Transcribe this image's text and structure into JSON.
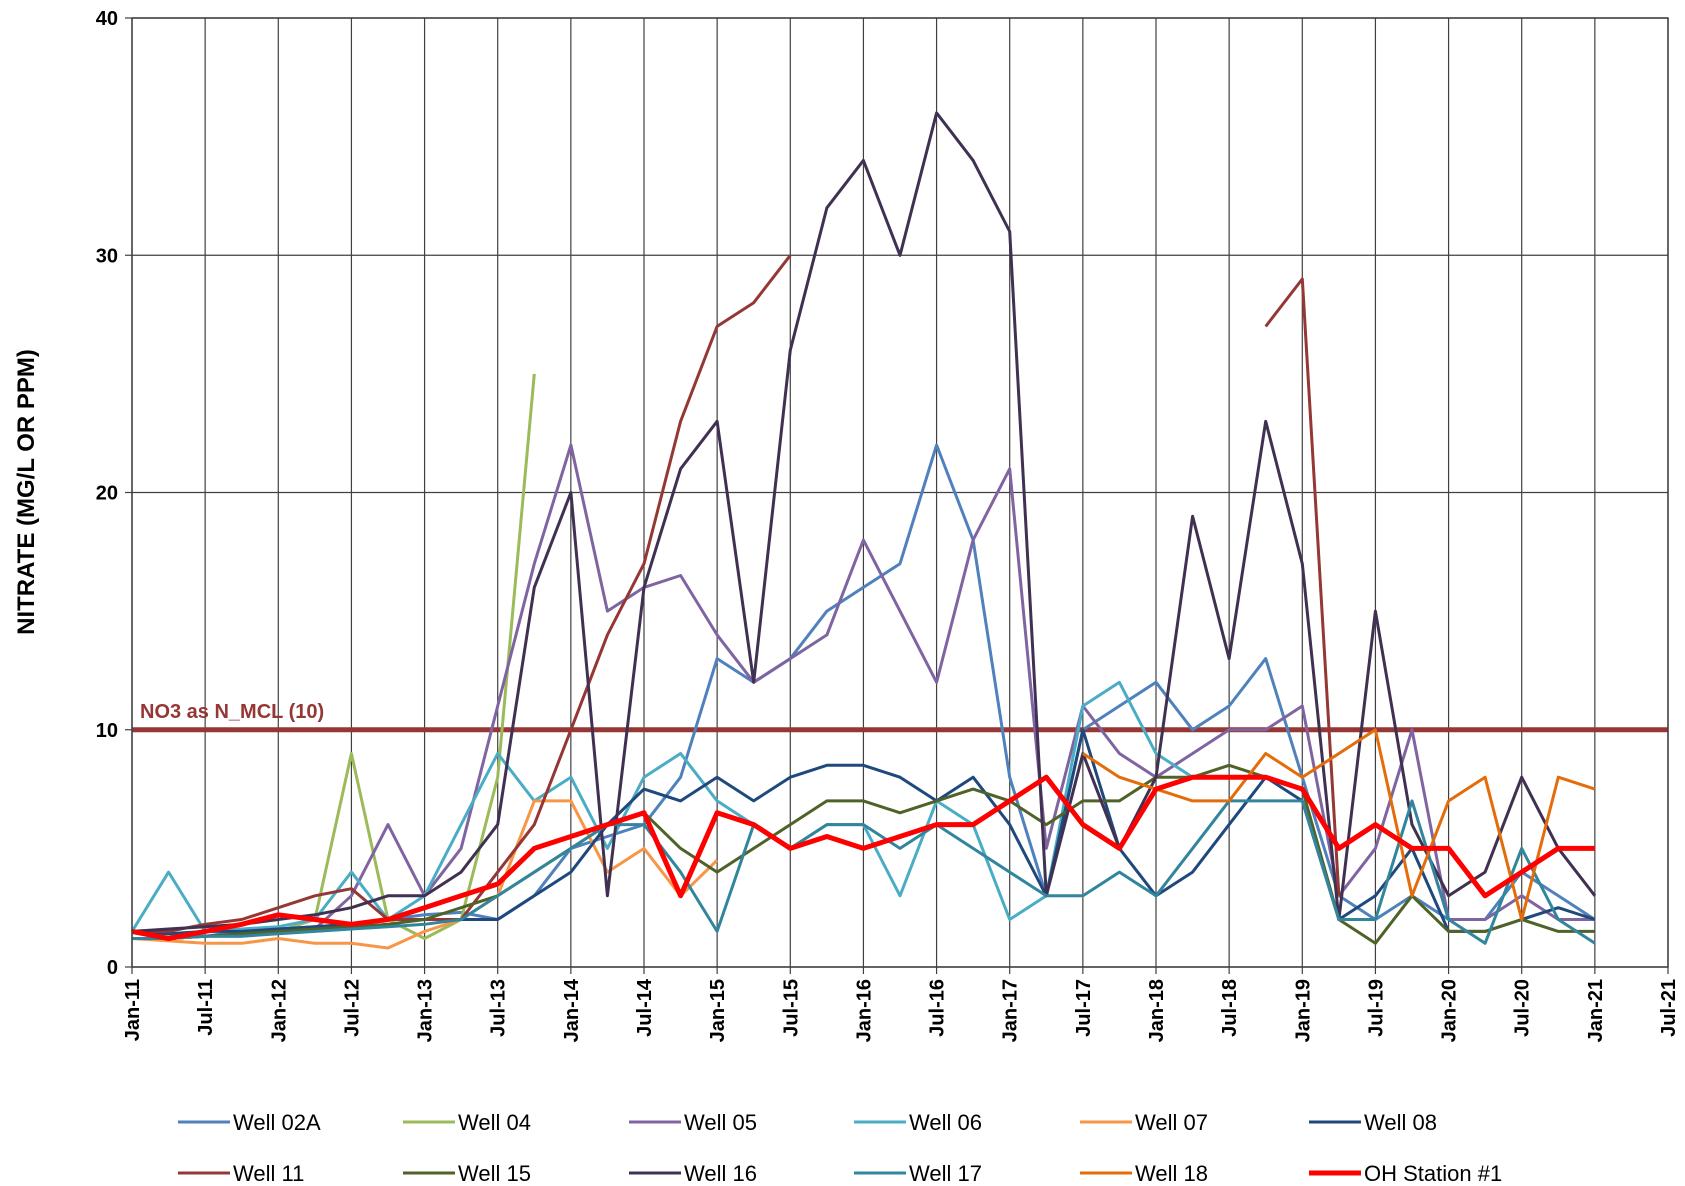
{
  "chart_data": {
    "type": "line",
    "ylabel": "NITRATE  (MG/L OR PPM)",
    "ylim": [
      0,
      40
    ],
    "yticks": [
      0,
      10,
      20,
      30,
      40
    ],
    "xlim": [
      "2011-01",
      "2021-07"
    ],
    "xticks": [
      {
        "value": "2011-01",
        "label": "Jan-11"
      },
      {
        "value": "2011-07",
        "label": "Jul-11"
      },
      {
        "value": "2012-01",
        "label": "Jan-12"
      },
      {
        "value": "2012-07",
        "label": "Jul-12"
      },
      {
        "value": "2013-01",
        "label": "Jan-13"
      },
      {
        "value": "2013-07",
        "label": "Jul-13"
      },
      {
        "value": "2014-01",
        "label": "Jan-14"
      },
      {
        "value": "2014-07",
        "label": "Jul-14"
      },
      {
        "value": "2015-01",
        "label": "Jan-15"
      },
      {
        "value": "2015-07",
        "label": "Jul-15"
      },
      {
        "value": "2016-01",
        "label": "Jan-16"
      },
      {
        "value": "2016-07",
        "label": "Jul-16"
      },
      {
        "value": "2017-01",
        "label": "Jan-17"
      },
      {
        "value": "2017-07",
        "label": "Jul-17"
      },
      {
        "value": "2018-01",
        "label": "Jan-18"
      },
      {
        "value": "2018-07",
        "label": "Jul-18"
      },
      {
        "value": "2019-01",
        "label": "Jan-19"
      },
      {
        "value": "2019-07",
        "label": "Jul-19"
      },
      {
        "value": "2020-01",
        "label": "Jan-20"
      },
      {
        "value": "2020-07",
        "label": "Jul-20"
      },
      {
        "value": "2021-01",
        "label": "Jan-21"
      },
      {
        "value": "2021-07",
        "label": "Jul-21"
      }
    ],
    "grid": true,
    "legend": "bottom",
    "reference_line": {
      "value": 10,
      "label": "NO3 as N_MCL (10)",
      "color": "#953735"
    },
    "x": [
      "2011-01",
      "2011-04",
      "2011-07",
      "2011-10",
      "2012-01",
      "2012-04",
      "2012-07",
      "2012-10",
      "2013-01",
      "2013-04",
      "2013-07",
      "2013-10",
      "2014-01",
      "2014-04",
      "2014-07",
      "2014-10",
      "2015-01",
      "2015-04",
      "2015-07",
      "2015-10",
      "2016-01",
      "2016-04",
      "2016-07",
      "2016-10",
      "2017-01",
      "2017-04",
      "2017-07",
      "2017-10",
      "2018-01",
      "2018-04",
      "2018-07",
      "2018-10",
      "2019-01",
      "2019-04",
      "2019-07",
      "2019-10",
      "2020-01",
      "2020-04",
      "2020-07",
      "2020-10",
      "2021-01"
    ],
    "series": [
      {
        "name": "Well 02A",
        "color": "#4f81bd",
        "values": [
          1.5,
          1.4,
          1.3,
          1.5,
          1.6,
          1.7,
          1.8,
          2.0,
          2.2,
          2.3,
          2.0,
          3,
          5,
          5.5,
          6,
          8,
          13,
          12,
          13,
          15,
          16,
          17,
          22,
          18,
          8,
          3,
          10,
          11,
          12,
          10,
          11,
          13,
          8,
          3,
          2,
          3,
          2,
          2,
          4,
          3,
          2
        ]
      },
      {
        "name": "Well 04",
        "color": "#9bbb59",
        "values": [
          1.2,
          1.2,
          1.3,
          1.3,
          1.5,
          2,
          9,
          2,
          1.2,
          2,
          8,
          25,
          null,
          null,
          null,
          null,
          null,
          null,
          null,
          null,
          null,
          null,
          null,
          null,
          null,
          null,
          null,
          null,
          null,
          null,
          null,
          null,
          null,
          null,
          null,
          null,
          null,
          null,
          null,
          null,
          null
        ]
      },
      {
        "name": "Well 05",
        "color": "#8064a2",
        "values": [
          1.2,
          1.2,
          1.3,
          1.4,
          1.5,
          1.6,
          3,
          6,
          3,
          5,
          11,
          17,
          22,
          15,
          16,
          16.5,
          14,
          12,
          13,
          14,
          18,
          15,
          12,
          18,
          21,
          5,
          11,
          9,
          8,
          9,
          10,
          10,
          11,
          3,
          5,
          10,
          2,
          2,
          3,
          2,
          2
        ]
      },
      {
        "name": "Well 06",
        "color": "#4bacc6",
        "values": [
          1.5,
          4,
          1.5,
          1.6,
          1.7,
          2,
          4,
          2,
          3,
          6,
          9,
          7,
          8,
          5,
          8,
          9,
          7,
          6,
          5,
          6,
          6,
          3,
          7,
          6,
          2,
          3,
          11,
          12,
          9,
          8,
          null,
          null,
          null,
          null,
          null,
          null,
          null,
          null,
          null,
          null,
          null
        ]
      },
      {
        "name": "Well 07",
        "color": "#f79646",
        "values": [
          1.2,
          1.1,
          1,
          1,
          1.2,
          1,
          1,
          0.8,
          1.5,
          2,
          3,
          7,
          7,
          4,
          5,
          3,
          4.5,
          null,
          null,
          null,
          null,
          null,
          null,
          null,
          null,
          null,
          null,
          null,
          null,
          null,
          null,
          null,
          null,
          null,
          null,
          null,
          null,
          null,
          null,
          null,
          null
        ]
      },
      {
        "name": "Well 08",
        "color": "#1f497d",
        "values": [
          1.5,
          1.4,
          1.5,
          1.5,
          1.6,
          1.7,
          1.8,
          2,
          2,
          2,
          2,
          3,
          4,
          6,
          7.5,
          7,
          8,
          7,
          8,
          8.5,
          8.5,
          8,
          7,
          8,
          6,
          3,
          10,
          5,
          3,
          4,
          6,
          8,
          7,
          2,
          3,
          5,
          1.5,
          1.5,
          2,
          2.5,
          2
        ]
      },
      {
        "name": "Well 11",
        "color": "#953735",
        "values": [
          1.5,
          1.5,
          1.8,
          2,
          2.5,
          3,
          3.3,
          2,
          2,
          2,
          4,
          6,
          10,
          14,
          17,
          23,
          27,
          28,
          30,
          null,
          null,
          null,
          null,
          null,
          null,
          null,
          null,
          null,
          null,
          null,
          null,
          27,
          29,
          3,
          null,
          null,
          null,
          null,
          null,
          null,
          null
        ]
      },
      {
        "name": "Well 15",
        "color": "#4f6228",
        "values": [
          1.2,
          1.2,
          1.3,
          1.4,
          1.5,
          1.6,
          1.7,
          1.8,
          2,
          2.5,
          3,
          4,
          5,
          6,
          6.5,
          5,
          4,
          5,
          6,
          7,
          7,
          6.5,
          7,
          7.5,
          7,
          6,
          7,
          7,
          8,
          8,
          8.5,
          8,
          7.5,
          2,
          1,
          3,
          1.5,
          1.5,
          2,
          1.5,
          1.5
        ]
      },
      {
        "name": "Well 16",
        "color": "#403152",
        "values": [
          1.5,
          1.6,
          1.7,
          1.8,
          2,
          2.2,
          2.5,
          3,
          3,
          4,
          6,
          16,
          20,
          3,
          16,
          21,
          23,
          12,
          26,
          32,
          34,
          30,
          36,
          34,
          31,
          3,
          9,
          5,
          8,
          19,
          13,
          23,
          17,
          2,
          15,
          6,
          3,
          4,
          8,
          5,
          3
        ]
      },
      {
        "name": "Well 17",
        "color": "#31859c",
        "values": [
          1.2,
          1.2,
          1.3,
          1.3,
          1.4,
          1.5,
          1.6,
          1.7,
          1.8,
          2,
          3,
          4,
          5,
          6,
          6,
          4,
          1.5,
          6,
          5,
          6,
          6,
          5,
          6,
          5,
          4,
          3,
          3,
          4,
          3,
          5,
          7,
          7,
          7,
          2,
          2,
          7,
          2,
          1,
          5,
          2,
          1
        ]
      },
      {
        "name": "Well 18",
        "color": "#e46c0a",
        "values": [
          null,
          null,
          null,
          null,
          null,
          null,
          null,
          null,
          null,
          null,
          null,
          null,
          null,
          null,
          null,
          null,
          null,
          null,
          null,
          null,
          null,
          null,
          null,
          null,
          null,
          null,
          9,
          8,
          7.5,
          7,
          7,
          9,
          8,
          9,
          10,
          3,
          7,
          8,
          2,
          8,
          7.5
        ]
      },
      {
        "name": "OH Station #1",
        "color": "#ff0000",
        "values": [
          1.5,
          1.2,
          1.5,
          1.8,
          2.2,
          2,
          1.8,
          2,
          2.5,
          3,
          3.5,
          5,
          5.5,
          6,
          6.5,
          3,
          6.5,
          6,
          5,
          5.5,
          5,
          5.5,
          6,
          6,
          7,
          8,
          6,
          5,
          7.5,
          8,
          8,
          8,
          7.5,
          5,
          6,
          5,
          5,
          3,
          4,
          5,
          5
        ]
      }
    ]
  }
}
